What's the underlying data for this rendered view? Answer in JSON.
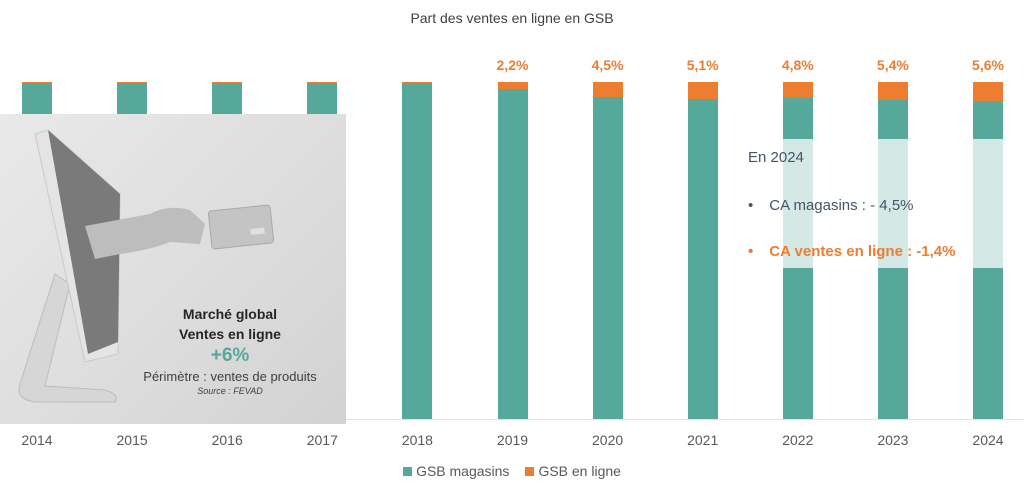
{
  "chart_data": {
    "type": "bar",
    "stacked": true,
    "normalized_100": true,
    "title": "Part des ventes en ligne en GSB",
    "xlabel": "",
    "ylabel": "",
    "categories": [
      "2014",
      "2015",
      "2016",
      "2017",
      "2018",
      "2019",
      "2020",
      "2021",
      "2022",
      "2023",
      "2024"
    ],
    "series": [
      {
        "name": "GSB magasins",
        "color": "#56A99A",
        "values": [
          99.8,
          99.8,
          99.8,
          99.8,
          99.8,
          97.8,
          95.5,
          94.9,
          95.2,
          94.6,
          94.4
        ]
      },
      {
        "name": "GSB en ligne",
        "color": "#ED7D31",
        "values": [
          0.2,
          0.2,
          0.2,
          0.2,
          0.2,
          2.2,
          4.5,
          5.1,
          4.8,
          5.4,
          5.6
        ]
      }
    ],
    "data_labels": [
      "",
      "",
      "",
      "",
      "",
      "2,2%",
      "4,5%",
      "5,1%",
      "4,8%",
      "5,4%",
      "5,6%"
    ],
    "ylim": [
      0,
      100
    ],
    "grid": false,
    "legend_position": "bottom"
  },
  "title": "Part des ventes en ligne en GSB",
  "legend": [
    {
      "label": "GSB magasins",
      "color": "#56A99A"
    },
    {
      "label": "GSB en ligne",
      "color": "#ED7D31"
    }
  ],
  "panel": {
    "title_line1": "Marché global",
    "title_line2": "Ventes en ligne",
    "value": "+6%",
    "scope": "Périmètre : ventes de produits",
    "source": "Source : FEVAD",
    "image_icon": "monitor-hand-credit-card-icon"
  },
  "info": {
    "heading": "En 2024",
    "bullet": "•",
    "store": "CA magasins : - 4,5%",
    "online": "CA ventes en ligne : -1,4%"
  },
  "colors": {
    "store": "#56A99A",
    "online": "#ED7D31",
    "text": "#595959",
    "info_text": "#44546A"
  }
}
